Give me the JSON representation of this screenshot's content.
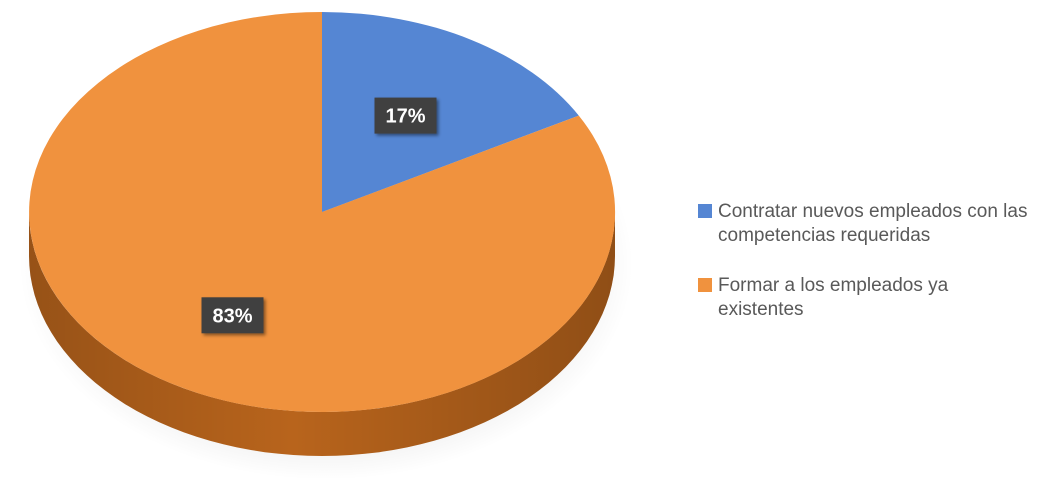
{
  "chart_data": {
    "type": "pie",
    "title": "",
    "categories": [
      "Contratar nuevos empleados con las competencias requeridas",
      "Formar a los empleados ya existentes"
    ],
    "values": [
      17,
      83
    ],
    "data_labels": [
      "17%",
      "83%"
    ],
    "colors": [
      "#5586d3",
      "#f0923e"
    ],
    "side_colors": [
      "#3b6aa8",
      "#b8641c"
    ],
    "legend_position": "right",
    "style": "3d-tilted"
  }
}
